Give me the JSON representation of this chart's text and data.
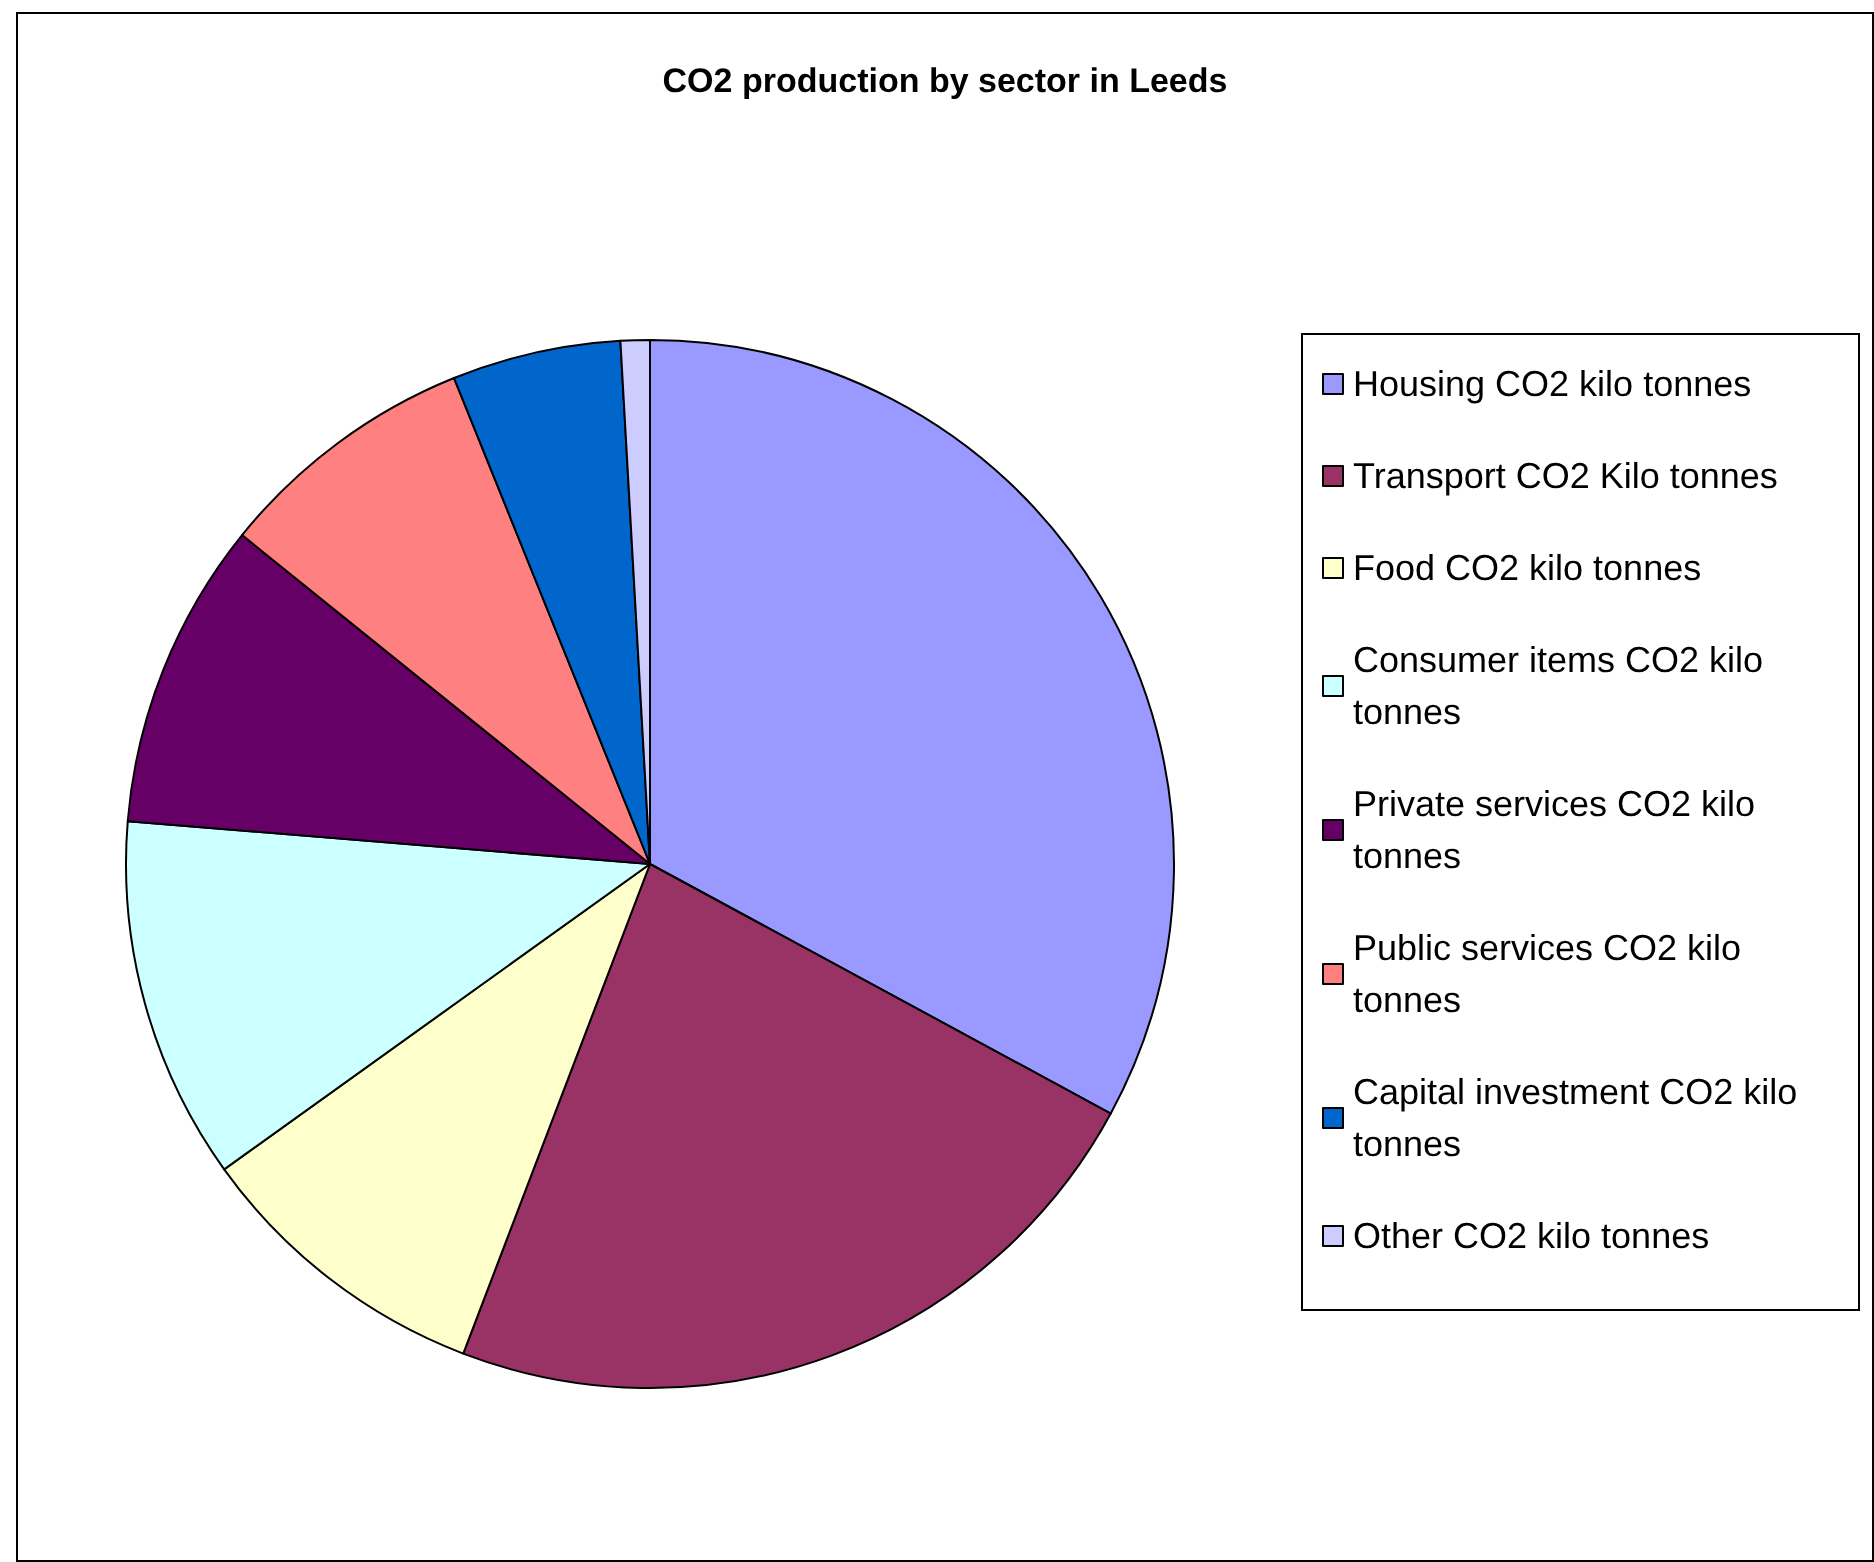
{
  "chart_data": {
    "type": "pie",
    "title": "CO2 production by sector in Leeds",
    "categories": [
      "Housing CO2 kilo tonnes",
      "Transport CO2 Kilo tonnes",
      "Food CO2 kilo tonnes",
      "Consumer items CO2 kilo tonnes",
      "Private services CO2 kilo tonnes",
      "Public services CO2 kilo tonnes",
      "Capital investment CO2 kilo tonnes",
      "Other CO2 kilo tonnes"
    ],
    "values": [
      32.9,
      22.9,
      9.3,
      11.2,
      9.5,
      8.1,
      5.2,
      0.9
    ],
    "colors": [
      "#9999ff",
      "#993366",
      "#ffffcc",
      "#ccffff",
      "#660066",
      "#ff8080",
      "#0066cc",
      "#ccccff"
    ],
    "legend": "right"
  }
}
